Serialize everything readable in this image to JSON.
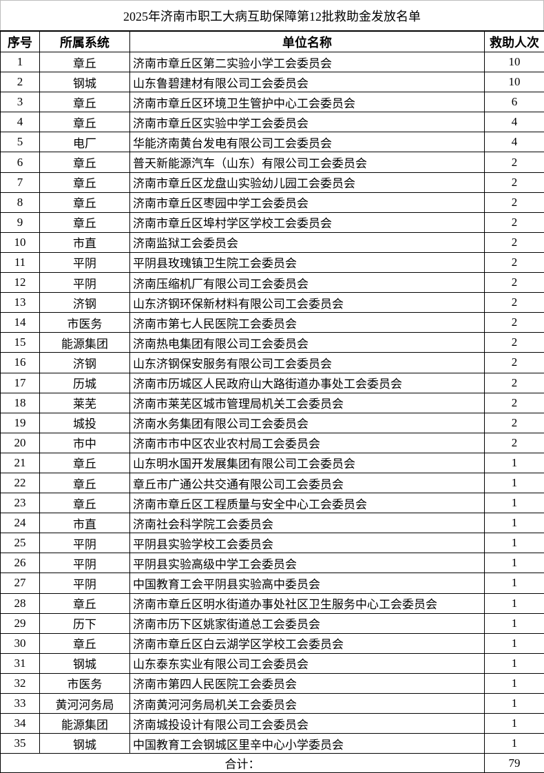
{
  "title": "2025年济南市职工大病互助保障第12批救助金发放名单",
  "headers": [
    "序号",
    "所属系统",
    "单位名称",
    "救助人次"
  ],
  "rows": [
    [
      "1",
      "章丘",
      "济南市章丘区第二实验小学工会委员会",
      "10"
    ],
    [
      "2",
      "钢城",
      "山东鲁碧建材有限公司工会委员会",
      "10"
    ],
    [
      "3",
      "章丘",
      "济南市章丘区环境卫生管护中心工会委员会",
      "6"
    ],
    [
      "4",
      "章丘",
      "济南市章丘区实验中学工会委员会",
      "4"
    ],
    [
      "5",
      "电厂",
      "华能济南黄台发电有限公司工会委员会",
      "4"
    ],
    [
      "6",
      "章丘",
      "普天新能源汽车（山东）有限公司工会委员会",
      "2"
    ],
    [
      "7",
      "章丘",
      "济南市章丘区龙盘山实验幼儿园工会委员会",
      "2"
    ],
    [
      "8",
      "章丘",
      "济南市章丘区枣园中学工会委员会",
      "2"
    ],
    [
      "9",
      "章丘",
      "济南市章丘区埠村学区学校工会委员会",
      "2"
    ],
    [
      "10",
      "市直",
      "济南监狱工会委员会",
      "2"
    ],
    [
      "11",
      "平阴",
      "平阴县玫瑰镇卫生院工会委员会",
      "2"
    ],
    [
      "12",
      "平阴",
      "济南压缩机厂有限公司工会委员会",
      "2"
    ],
    [
      "13",
      "济钢",
      "山东济钢环保新材料有限公司工会委员会",
      "2"
    ],
    [
      "14",
      "市医务",
      "济南市第七人民医院工会委员会",
      "2"
    ],
    [
      "15",
      "能源集团",
      "济南热电集团有限公司工会委员会",
      "2"
    ],
    [
      "16",
      "济钢",
      "山东济钢保安服务有限公司工会委员会",
      "2"
    ],
    [
      "17",
      "历城",
      "济南市历城区人民政府山大路街道办事处工会委员会",
      "2"
    ],
    [
      "18",
      "莱芜",
      "济南市莱芜区城市管理局机关工会委员会",
      "2"
    ],
    [
      "19",
      "城投",
      "济南水务集团有限公司工会委员会",
      "2"
    ],
    [
      "20",
      "市中",
      "济南市市中区农业农村局工会委员会",
      "2"
    ],
    [
      "21",
      "章丘",
      "山东明水国开发展集团有限公司工会委员会",
      "1"
    ],
    [
      "22",
      "章丘",
      "章丘市广通公共交通有限公司工会委员会",
      "1"
    ],
    [
      "23",
      "章丘",
      "济南市章丘区工程质量与安全中心工会委员会",
      "1"
    ],
    [
      "24",
      "市直",
      "济南社会科学院工会委员会",
      "1"
    ],
    [
      "25",
      "平阴",
      "平阴县实验学校工会委员会",
      "1"
    ],
    [
      "26",
      "平阴",
      "平阴县实验高级中学工会委员会",
      "1"
    ],
    [
      "27",
      "平阴",
      "中国教育工会平阴县实验高中委员会",
      "1"
    ],
    [
      "28",
      "章丘",
      "济南市章丘区明水街道办事处社区卫生服务中心工会委员会",
      "1"
    ],
    [
      "29",
      "历下",
      "济南市历下区姚家街道总工会委员会",
      "1"
    ],
    [
      "30",
      "章丘",
      "济南市章丘区白云湖学区学校工会委员会",
      "1"
    ],
    [
      "31",
      "钢城",
      "山东泰东实业有限公司工会委员会",
      "1"
    ],
    [
      "32",
      "市医务",
      "济南市第四人民医院工会委员会",
      "1"
    ],
    [
      "33",
      "黄河河务局",
      "济南黄河河务局机关工会委员会",
      "1"
    ],
    [
      "34",
      "能源集团",
      "济南城投设计有限公司工会委员会",
      "1"
    ],
    [
      "35",
      "钢城",
      "中国教育工会钢城区里辛中心小学委员会",
      "1"
    ]
  ],
  "total": {
    "label": "合计：",
    "value": "79"
  }
}
